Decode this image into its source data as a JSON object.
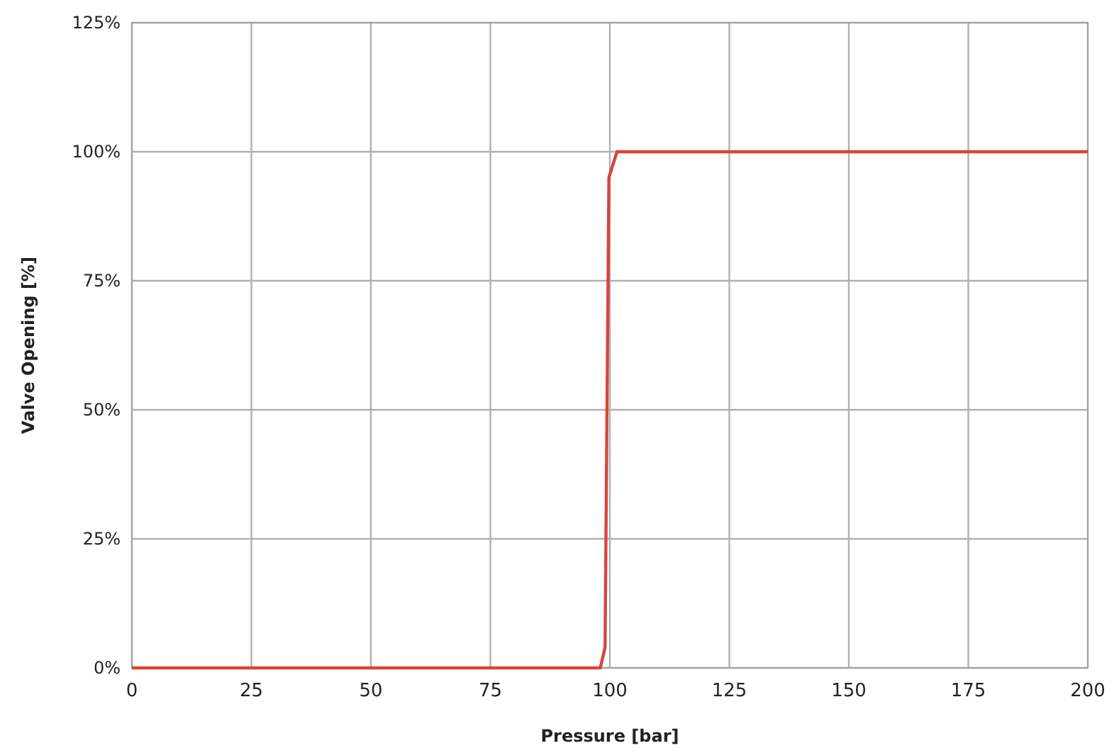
{
  "chart_data": {
    "type": "line",
    "xlabel": "Pressure  [bar]",
    "ylabel": "Valve Opening [%]",
    "series": [
      {
        "color": "#d9443a",
        "x": [
          0,
          98,
          99,
          99.8,
          101.5,
          200
        ],
        "values": [
          0,
          0,
          4,
          95,
          100,
          100
        ]
      }
    ],
    "xlim": [
      0,
      200
    ],
    "xticks": [
      0,
      25,
      50,
      75,
      100,
      125,
      150,
      175,
      200
    ],
    "ylim": [
      0,
      125
    ],
    "yticks": [
      {
        "value": 0,
        "label": "0%"
      },
      {
        "value": 25,
        "label": "25%"
      },
      {
        "value": 50,
        "label": "50%"
      },
      {
        "value": 75,
        "label": "75%"
      },
      {
        "value": 100,
        "label": "100%"
      },
      {
        "value": 125,
        "label": "125%"
      }
    ],
    "grid": true,
    "marker": "none",
    "line_style": "solid"
  }
}
